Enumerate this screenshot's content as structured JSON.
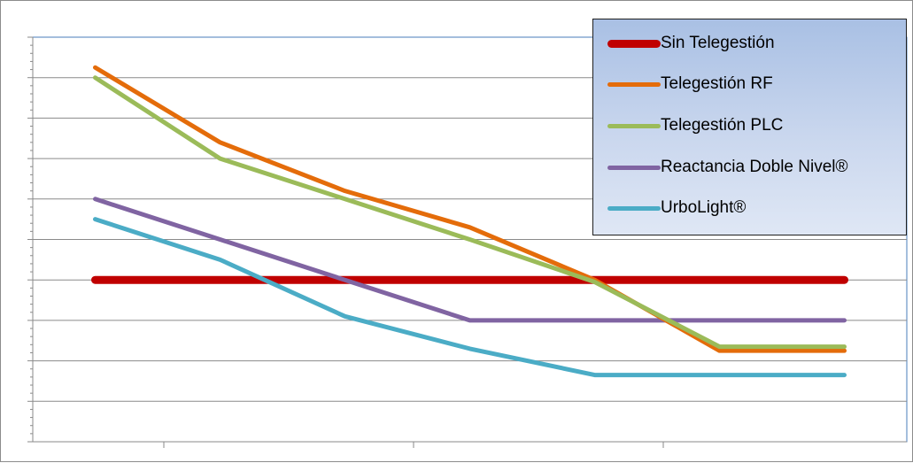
{
  "chart_data": {
    "type": "line",
    "title": "",
    "xlabel": "",
    "ylabel": "",
    "grid": true,
    "legend_position": "top-right",
    "x": [
      1,
      2,
      3,
      4,
      5,
      6,
      7
    ],
    "xlim": [
      0.5,
      7.5
    ],
    "ylim": [
      0,
      10
    ],
    "series": [
      {
        "name": "Sin Telegestión",
        "color": "#c00000",
        "values": [
          4,
          4,
          4,
          4,
          4,
          4,
          4
        ]
      },
      {
        "name": "Telegestión RF",
        "color": "#e46c0a",
        "values": [
          9.25,
          7.4,
          6.2,
          5.3,
          4,
          2.25,
          2.25
        ]
      },
      {
        "name": "Telegestión PLC",
        "color": "#9bbb59",
        "values": [
          9,
          7,
          6,
          5,
          3.95,
          2.35,
          2.35
        ]
      },
      {
        "name": "Reactancia Doble Nivel®",
        "color": "#8064a2",
        "values": [
          6,
          5,
          4,
          3,
          3,
          3,
          3
        ]
      },
      {
        "name": "UrboLight®",
        "color": "#4bacc6",
        "values": [
          5.5,
          4.5,
          3.1,
          2.3,
          1.65,
          1.65,
          1.65
        ]
      }
    ]
  }
}
